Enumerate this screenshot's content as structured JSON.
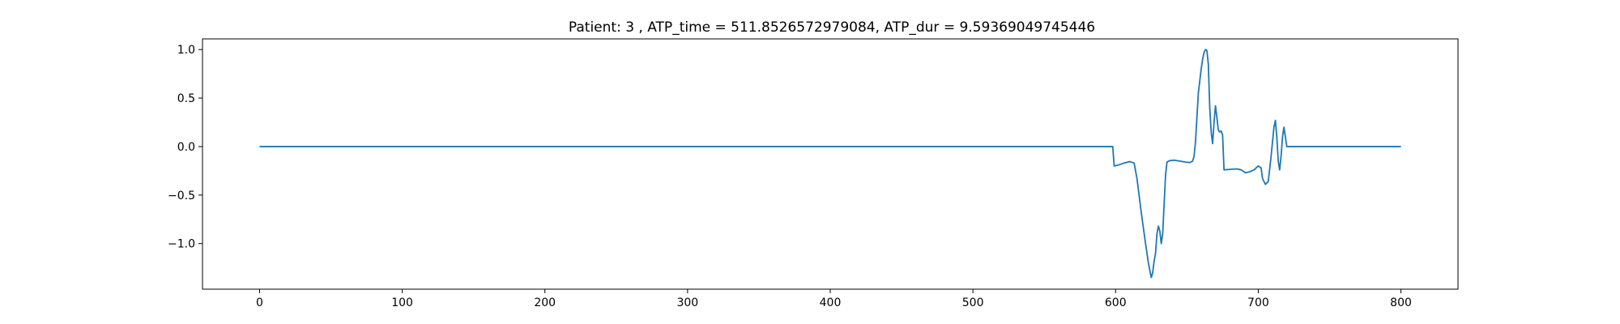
{
  "chart_data": {
    "type": "line",
    "title": "Patient: 3 , ATP_time = 511.8526572979084, ATP_dur = 9.59369049745446",
    "xlabel": "",
    "ylabel": "",
    "xlim": [
      -40,
      840
    ],
    "ylim": [
      -1.47,
      1.11
    ],
    "xticks": [
      0,
      100,
      200,
      300,
      400,
      500,
      600,
      700,
      800
    ],
    "yticks": [
      1.0,
      0.5,
      0.0,
      -0.5,
      -1.0
    ],
    "ytick_labels": [
      "1.0",
      "0.5",
      "0.0",
      "−0.5",
      "−1.0"
    ],
    "grid": false,
    "legend": "none",
    "series": [
      {
        "color": "#1f77b4",
        "points": [
          [
            0,
            0.0
          ],
          [
            598,
            0.0
          ],
          [
            599,
            -0.2
          ],
          [
            602,
            -0.19
          ],
          [
            606,
            -0.17
          ],
          [
            610,
            -0.155
          ],
          [
            613,
            -0.17
          ],
          [
            615,
            -0.33
          ],
          [
            618,
            -0.68
          ],
          [
            621,
            -1.0
          ],
          [
            623,
            -1.2
          ],
          [
            625,
            -1.35
          ],
          [
            626,
            -1.3
          ],
          [
            627,
            -1.18
          ],
          [
            628,
            -1.1
          ],
          [
            629,
            -0.9
          ],
          [
            630,
            -0.82
          ],
          [
            631,
            -0.87
          ],
          [
            632,
            -1.0
          ],
          [
            633,
            -0.9
          ],
          [
            634,
            -0.6
          ],
          [
            635,
            -0.3
          ],
          [
            636,
            -0.16
          ],
          [
            638,
            -0.145
          ],
          [
            641,
            -0.14
          ],
          [
            645,
            -0.15
          ],
          [
            649,
            -0.16
          ],
          [
            652,
            -0.165
          ],
          [
            654,
            -0.15
          ],
          [
            655,
            -0.1
          ],
          [
            656,
            0.05
          ],
          [
            657,
            0.3
          ],
          [
            658,
            0.55
          ],
          [
            660,
            0.8
          ],
          [
            661,
            0.9
          ],
          [
            662,
            0.97
          ],
          [
            663,
            1.0
          ],
          [
            664,
            0.99
          ],
          [
            665,
            0.85
          ],
          [
            666,
            0.4
          ],
          [
            667,
            0.15
          ],
          [
            668,
            0.03
          ],
          [
            669,
            0.25
          ],
          [
            670,
            0.42
          ],
          [
            671,
            0.3
          ],
          [
            672,
            0.17
          ],
          [
            673,
            0.15
          ],
          [
            674,
            0.16
          ],
          [
            675,
            0.12
          ],
          [
            676,
            -0.24
          ],
          [
            680,
            -0.235
          ],
          [
            685,
            -0.23
          ],
          [
            688,
            -0.24
          ],
          [
            691,
            -0.27
          ],
          [
            694,
            -0.26
          ],
          [
            697,
            -0.24
          ],
          [
            700,
            -0.2
          ],
          [
            702,
            -0.22
          ],
          [
            703,
            -0.33
          ],
          [
            705,
            -0.39
          ],
          [
            707,
            -0.36
          ],
          [
            709,
            -0.1
          ],
          [
            711,
            0.2
          ],
          [
            712,
            0.27
          ],
          [
            713,
            0.1
          ],
          [
            714,
            -0.15
          ],
          [
            715,
            -0.24
          ],
          [
            716,
            -0.1
          ],
          [
            717,
            0.1
          ],
          [
            718,
            0.2
          ],
          [
            719,
            0.1
          ],
          [
            720,
            0.0
          ],
          [
            800,
            0.0
          ]
        ]
      }
    ]
  }
}
